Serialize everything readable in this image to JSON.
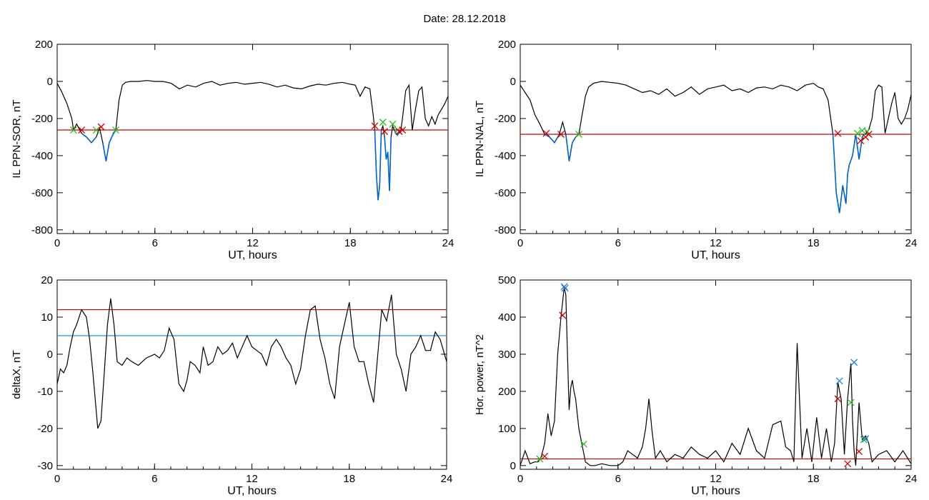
{
  "title": "Date:  28.12.2018",
  "colors": {
    "frame": "#000000",
    "trace": "#000000",
    "highlight": "#0066cc",
    "threshold_red": "#cc0000",
    "threshold_blue": "#1e7fd6",
    "marker_green": "#22bb22"
  },
  "chart_data": [
    {
      "id": "il-ppn-sor",
      "type": "line",
      "xlabel": "UT, hours",
      "ylabel": "IL PPN-SOR, nT",
      "xlim": [
        0,
        24
      ],
      "ylim": [
        -820,
        200
      ],
      "xticks": [
        0,
        6,
        12,
        18,
        24
      ],
      "yticks": [
        200,
        0,
        -200,
        -400,
        -600,
        -800
      ],
      "grid": false,
      "threshold": -262,
      "x": [
        0,
        0.3,
        0.6,
        0.9,
        1.0,
        1.2,
        1.5,
        1.8,
        2.1,
        2.4,
        2.6,
        2.8,
        3.0,
        3.2,
        3.4,
        3.6,
        3.8,
        4.0,
        4.2,
        4.5,
        5,
        5.5,
        6,
        6.5,
        7,
        7.5,
        8,
        8.5,
        9,
        9.5,
        10,
        10.5,
        11,
        11.5,
        12,
        12.5,
        13,
        13.5,
        14,
        14.5,
        15,
        15.5,
        16,
        16.5,
        17,
        17.5,
        18,
        18.3,
        18.6,
        18.9,
        19.2,
        19.4,
        19.5,
        19.6,
        19.7,
        19.8,
        19.9,
        20.0,
        20.1,
        20.2,
        20.3,
        20.4,
        20.5,
        20.6,
        20.7,
        20.8,
        20.9,
        21.0,
        21.1,
        21.2,
        21.4,
        21.6,
        21.8,
        22.0,
        22.2,
        22.4,
        22.6,
        22.8,
        23.0,
        23.2,
        23.4,
        23.6,
        23.8,
        24
      ],
      "y": [
        -10,
        -60,
        -120,
        -200,
        -262,
        -230,
        -280,
        -300,
        -330,
        -300,
        -250,
        -330,
        -430,
        -330,
        -290,
        -262,
        -100,
        -20,
        -5,
        0,
        0,
        5,
        0,
        0,
        -10,
        -40,
        -20,
        -30,
        -10,
        0,
        -20,
        -10,
        -5,
        -15,
        -10,
        -5,
        -15,
        -30,
        -20,
        -35,
        -40,
        -25,
        -15,
        -20,
        -10,
        -5,
        -15,
        -20,
        -80,
        -30,
        -40,
        -180,
        -262,
        -500,
        -640,
        -560,
        -262,
        -240,
        -300,
        -420,
        -380,
        -590,
        -300,
        -240,
        -262,
        -280,
        -290,
        -275,
        -262,
        -200,
        -50,
        -20,
        -262,
        -150,
        -50,
        -30,
        -200,
        -240,
        -190,
        -230,
        -180,
        -150,
        -120,
        -80
      ],
      "markers": [
        {
          "x": 1.0,
          "y": -262,
          "color": "green"
        },
        {
          "x": 1.5,
          "y": -262,
          "color": "red"
        },
        {
          "x": 2.4,
          "y": -262,
          "color": "green"
        },
        {
          "x": 2.7,
          "y": -245,
          "color": "red"
        },
        {
          "x": 3.6,
          "y": -262,
          "color": "green"
        },
        {
          "x": 19.5,
          "y": -240,
          "color": "red"
        },
        {
          "x": 20.0,
          "y": -220,
          "color": "green"
        },
        {
          "x": 20.1,
          "y": -270,
          "color": "red"
        },
        {
          "x": 20.6,
          "y": -230,
          "color": "green"
        },
        {
          "x": 20.9,
          "y": -262,
          "color": "green"
        },
        {
          "x": 21.0,
          "y": -270,
          "color": "red"
        },
        {
          "x": 21.2,
          "y": -262,
          "color": "red"
        }
      ]
    },
    {
      "id": "il-ppn-nal",
      "type": "line",
      "xlabel": "UT, hours",
      "ylabel": "IL PPN-NAL, nT",
      "xlim": [
        0,
        24
      ],
      "ylim": [
        -820,
        200
      ],
      "xticks": [
        0,
        6,
        12,
        18,
        24
      ],
      "yticks": [
        200,
        0,
        -200,
        -400,
        -600,
        -800
      ],
      "grid": false,
      "threshold": -285,
      "x": [
        0,
        0.3,
        0.6,
        0.9,
        1.2,
        1.5,
        1.8,
        2.1,
        2.4,
        2.6,
        2.8,
        3.0,
        3.2,
        3.4,
        3.6,
        3.8,
        4.0,
        4.2,
        4.5,
        5,
        5.5,
        6,
        6.5,
        7,
        7.5,
        8,
        8.5,
        9,
        9.5,
        10,
        10.5,
        11,
        11.5,
        12,
        12.5,
        13,
        13.5,
        14,
        14.5,
        15,
        15.5,
        16,
        16.5,
        17,
        17.5,
        18,
        18.3,
        18.6,
        18.9,
        19.2,
        19.4,
        19.6,
        19.8,
        20.0,
        20.1,
        20.2,
        20.4,
        20.6,
        20.8,
        21.0,
        21.1,
        21.2,
        21.4,
        21.6,
        21.8,
        22.0,
        22.2,
        22.4,
        22.6,
        22.8,
        23.0,
        23.2,
        23.4,
        23.6,
        23.8,
        24
      ],
      "y": [
        -20,
        -60,
        -100,
        -180,
        -230,
        -285,
        -300,
        -330,
        -285,
        -220,
        -285,
        -430,
        -330,
        -300,
        -285,
        -180,
        -80,
        -30,
        -10,
        0,
        -5,
        -10,
        -20,
        -40,
        -60,
        -50,
        -70,
        -40,
        -80,
        -60,
        -30,
        -70,
        -40,
        -30,
        -20,
        -50,
        -40,
        -60,
        -35,
        -30,
        -40,
        -20,
        -30,
        -50,
        -20,
        -10,
        -30,
        -40,
        -100,
        -285,
        -600,
        -710,
        -560,
        -660,
        -500,
        -450,
        -400,
        -285,
        -420,
        -300,
        -285,
        -285,
        -260,
        -200,
        -50,
        -20,
        -30,
        -280,
        -200,
        -120,
        -60,
        -200,
        -230,
        -200,
        -150,
        -70
      ],
      "markers": [
        {
          "x": 1.6,
          "y": -280,
          "color": "red"
        },
        {
          "x": 2.5,
          "y": -285,
          "color": "red"
        },
        {
          "x": 3.6,
          "y": -285,
          "color": "green"
        },
        {
          "x": 19.5,
          "y": -280,
          "color": "red"
        },
        {
          "x": 20.7,
          "y": -280,
          "color": "green"
        },
        {
          "x": 20.9,
          "y": -320,
          "color": "red"
        },
        {
          "x": 21.0,
          "y": -265,
          "color": "green"
        },
        {
          "x": 21.2,
          "y": -300,
          "color": "red"
        },
        {
          "x": 21.3,
          "y": -270,
          "color": "green"
        },
        {
          "x": 21.4,
          "y": -285,
          "color": "red"
        }
      ]
    },
    {
      "id": "deltax",
      "type": "line",
      "xlabel": "UT, hours",
      "ylabel": "deltaX, nT",
      "xlim": [
        0,
        24
      ],
      "ylim": [
        -31,
        20
      ],
      "xticks": [
        0,
        6,
        12,
        18,
        24
      ],
      "yticks": [
        20,
        10,
        0,
        -10,
        -20,
        -30
      ],
      "grid": false,
      "thresholds": [
        {
          "value": 12,
          "color": "red"
        },
        {
          "value": 5,
          "color": "blue"
        }
      ],
      "x": [
        0,
        0.2,
        0.4,
        0.6,
        0.8,
        1.0,
        1.2,
        1.5,
        1.8,
        2.0,
        2.2,
        2.5,
        2.7,
        2.9,
        3.1,
        3.3,
        3.5,
        3.7,
        4.0,
        4.3,
        4.6,
        5,
        5.5,
        6,
        6.3,
        6.6,
        6.9,
        7.2,
        7.5,
        7.8,
        8.0,
        8.2,
        8.5,
        8.8,
        9.0,
        9.3,
        9.6,
        9.9,
        10.2,
        10.5,
        10.8,
        11.1,
        11.4,
        11.7,
        12.0,
        12.3,
        12.6,
        12.9,
        13.2,
        13.5,
        13.8,
        14.1,
        14.4,
        14.7,
        15.0,
        15.3,
        15.6,
        15.9,
        16.2,
        16.5,
        16.8,
        17.1,
        17.4,
        17.7,
        18.0,
        18.3,
        18.6,
        18.9,
        19.2,
        19.5,
        19.8,
        20.0,
        20.3,
        20.6,
        20.9,
        21.2,
        21.5,
        21.8,
        22.1,
        22.4,
        22.7,
        23.0,
        23.3,
        23.6,
        23.8,
        24
      ],
      "y": [
        -8,
        -4,
        -5,
        -3,
        2,
        6,
        8,
        12,
        10,
        4,
        -5,
        -20,
        -18,
        -5,
        8,
        15,
        8,
        -2,
        -3,
        -1,
        -2,
        -3,
        -1,
        0,
        -1,
        1,
        7,
        4,
        -8,
        -10,
        -7,
        -2,
        -3,
        -5,
        2,
        -3,
        -2,
        2,
        0,
        1,
        3,
        -1,
        2,
        5,
        2,
        1,
        0,
        -3,
        2,
        4,
        2,
        -1,
        -3,
        -8,
        -4,
        5,
        12,
        13,
        4,
        -1,
        -8,
        -12,
        2,
        8,
        14,
        2,
        -2,
        -2,
        -8,
        -13,
        2,
        12,
        9,
        16,
        0,
        -4,
        -10,
        0,
        2,
        5,
        1,
        1,
        6,
        4,
        1,
        -2
      ]
    },
    {
      "id": "hor-power",
      "type": "line",
      "xlabel": "UT, hours",
      "ylabel": "Hor. power, nT^2",
      "xlim": [
        0,
        24
      ],
      "ylim": [
        -10,
        500
      ],
      "xticks": [
        0,
        6,
        12,
        18,
        24
      ],
      "yticks": [
        500,
        400,
        300,
        200,
        100,
        0
      ],
      "grid": false,
      "threshold": 18,
      "x": [
        0,
        0.3,
        0.6,
        0.9,
        1.1,
        1.3,
        1.5,
        1.7,
        1.9,
        2.1,
        2.3,
        2.5,
        2.7,
        2.8,
        2.9,
        3.0,
        3.1,
        3.2,
        3.3,
        3.4,
        3.6,
        3.8,
        4.0,
        4.3,
        4.6,
        5,
        5.5,
        6,
        6.3,
        6.6,
        6.9,
        7.2,
        7.5,
        7.7,
        7.9,
        8.1,
        8.3,
        8.6,
        9,
        9.5,
        10,
        10.5,
        11,
        11.5,
        12,
        12.5,
        13,
        13.5,
        14,
        14.5,
        15,
        15.5,
        16,
        16.3,
        16.6,
        16.8,
        17.0,
        17.3,
        17.6,
        17.9,
        18.2,
        18.5,
        18.8,
        19.1,
        19.3,
        19.5,
        19.7,
        19.9,
        20.1,
        20.3,
        20.4,
        20.5,
        20.6,
        20.8,
        21.0,
        21.2,
        21.4,
        21.6,
        22,
        22.5,
        23,
        23.5,
        24
      ],
      "y": [
        0,
        40,
        5,
        10,
        10,
        25,
        60,
        140,
        80,
        120,
        300,
        400,
        480,
        460,
        300,
        150,
        210,
        230,
        200,
        180,
        100,
        55,
        10,
        0,
        0,
        5,
        0,
        0,
        10,
        40,
        30,
        20,
        50,
        100,
        180,
        90,
        20,
        40,
        10,
        30,
        20,
        50,
        30,
        20,
        40,
        10,
        60,
        30,
        100,
        40,
        20,
        110,
        120,
        50,
        40,
        10,
        330,
        20,
        100,
        10,
        130,
        20,
        100,
        10,
        60,
        225,
        180,
        30,
        180,
        275,
        120,
        40,
        0,
        170,
        70,
        80,
        60,
        10,
        30,
        40,
        10,
        40,
        5
      ],
      "markers": [
        {
          "x": 1.2,
          "y": 18,
          "color": "green"
        },
        {
          "x": 1.5,
          "y": 25,
          "color": "red"
        },
        {
          "x": 2.6,
          "y": 405,
          "color": "red"
        },
        {
          "x": 2.7,
          "y": 482,
          "color": "blue"
        },
        {
          "x": 2.75,
          "y": 478,
          "color": "blue"
        },
        {
          "x": 3.9,
          "y": 58,
          "color": "green"
        },
        {
          "x": 19.5,
          "y": 180,
          "color": "red"
        },
        {
          "x": 19.6,
          "y": 228,
          "color": "blue"
        },
        {
          "x": 20.1,
          "y": 5,
          "color": "red"
        },
        {
          "x": 20.3,
          "y": 170,
          "color": "green"
        },
        {
          "x": 20.5,
          "y": 278,
          "color": "blue"
        },
        {
          "x": 20.8,
          "y": 38,
          "color": "red"
        },
        {
          "x": 21.1,
          "y": 70,
          "color": "green"
        },
        {
          "x": 21.2,
          "y": 72,
          "color": "blue"
        }
      ]
    }
  ]
}
